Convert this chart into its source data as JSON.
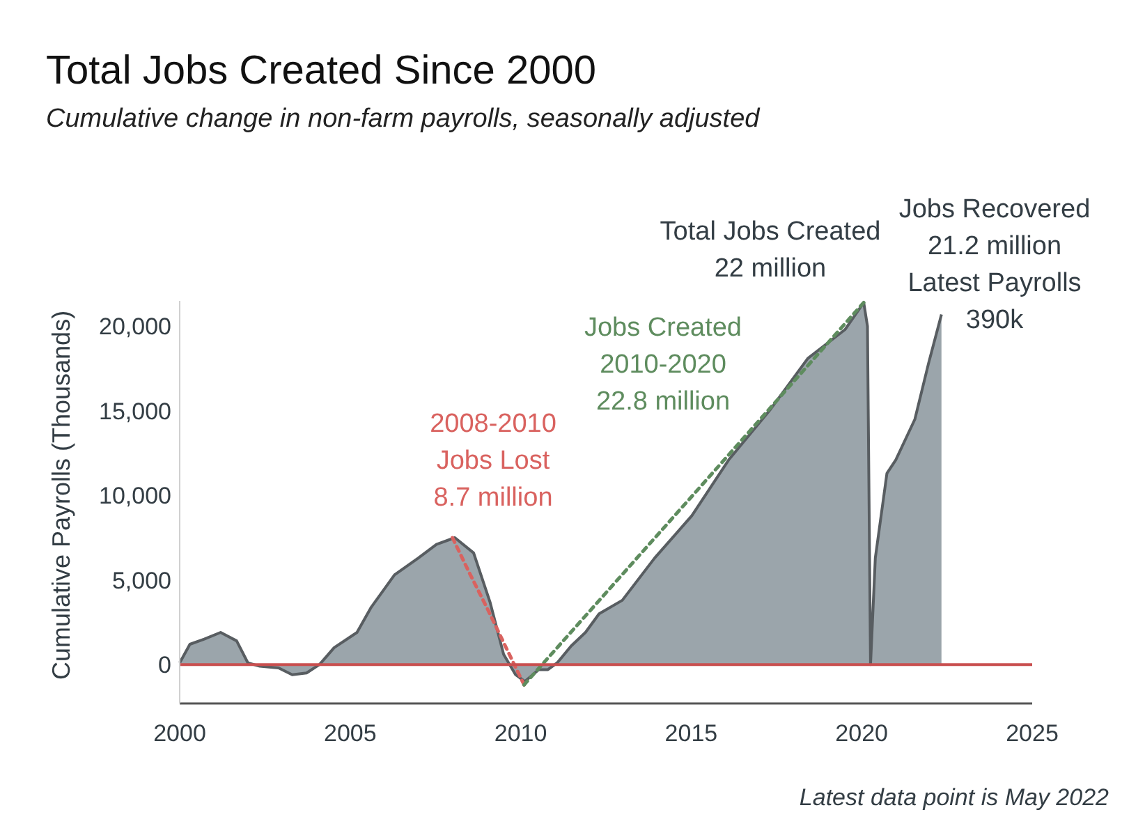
{
  "chart_data": {
    "type": "area",
    "title": "Total Jobs Created Since 2000",
    "subtitle": "Cumulative change in non-farm payrolls, seasonally adjusted",
    "ylabel": "Cumulative Payrolls (Thousands)",
    "xlim": [
      2000,
      2025
    ],
    "xticks": [
      2000,
      2005,
      2010,
      2015,
      2020,
      2025
    ],
    "ylim": [
      -2300,
      21500
    ],
    "yticks": [
      0,
      {
        "value": 5000,
        "label": "5,000"
      },
      {
        "value": 10000,
        "label": "10,000"
      },
      {
        "value": 15000,
        "label": "15,000"
      },
      {
        "value": 20000,
        "label": "20,000"
      }
    ],
    "grid": false,
    "series": [
      {
        "type": "area",
        "color": "#9ba5ab",
        "x": [
          2000.0,
          2000.3,
          2000.72,
          2001.2,
          2001.67,
          2002.0,
          2002.35,
          2002.9,
          2003.3,
          2003.72,
          2004.1,
          2004.53,
          2005.2,
          2005.62,
          2006.3,
          2007.0,
          2007.53,
          2008.07,
          2008.62,
          2009.1,
          2009.5,
          2009.85,
          2010.12,
          2010.53,
          2010.8,
          2011.07,
          2011.48,
          2011.9,
          2012.3,
          2012.98,
          2013.93,
          2015.02,
          2016.1,
          2017.33,
          2018.42,
          2019.51,
          2020.06,
          2020.17,
          2020.26,
          2020.4,
          2020.74,
          2021.0,
          2021.56,
          2021.96,
          2022.34
        ],
        "values": [
          100,
          1200,
          1500,
          1900,
          1400,
          100,
          -100,
          -200,
          -600,
          -500,
          0,
          1000,
          1900,
          3400,
          5300,
          6300,
          7100,
          7500,
          6600,
          3700,
          600,
          -600,
          -1000,
          -300,
          -300,
          100,
          1100,
          1900,
          3000,
          3800,
          6300,
          8800,
          12100,
          15100,
          18100,
          19800,
          21400,
          20000,
          0,
          6300,
          11300,
          12100,
          14500,
          17800,
          20700
        ]
      },
      {
        "type": "line",
        "color": "#d9625f",
        "line_style": "dotted",
        "x": [
          2008.0,
          2008.5,
          2009.0,
          2009.5,
          2010.1
        ],
        "values": [
          7500,
          5400,
          3400,
          1300,
          -1200
        ]
      },
      {
        "type": "line",
        "color": "#5e8c5e",
        "line_style": "dotted",
        "x": [
          2010.1,
          2015.0,
          2020.06
        ],
        "values": [
          -1200,
          9900,
          21400
        ]
      }
    ],
    "ref_lines": [
      {
        "axis": "y",
        "value": 0,
        "color": "#c94f4f"
      }
    ],
    "annotations": [
      "2008-2010\nJobs Lost\n8.7 million",
      "Jobs Created\n2010-2020\n22.8 million",
      "Total Jobs Created\n22 million",
      "Jobs Recovered\n21.2 million\nLatest Payrolls\n390k",
      "Latest data point is May 2022"
    ]
  }
}
